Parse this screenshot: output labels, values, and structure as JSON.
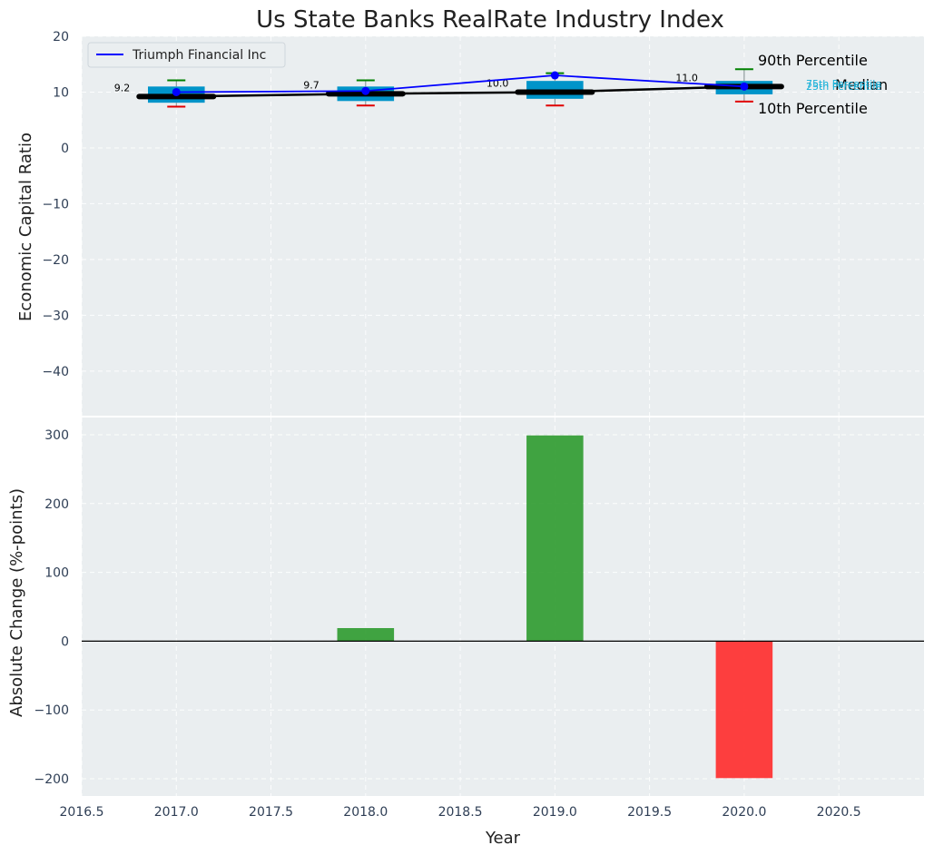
{
  "colors": {
    "panel_bg": "#eaeef0",
    "triumph_line": "#0000ff",
    "median_line": "#000000",
    "box_fill": "#0094c9",
    "p90_whisker": "#008000",
    "p10_whisker": "#e00000",
    "bar_positive": "#2e9a2e",
    "bar_negative": "#ff2a2a",
    "quartile_text": "#17b0d8"
  },
  "chart_data": [
    {
      "type": "box-line",
      "title": "Us State Banks RealRate Industry Index",
      "ylabel": "Economic Capital Ratio",
      "xlim": [
        2016.5,
        2020.95
      ],
      "ylim": [
        -48,
        20
      ],
      "yticks": [
        20,
        10,
        0,
        -10,
        -20,
        -30,
        -40
      ],
      "ytick_labels": [
        "20",
        "10",
        "0",
        "−10",
        "−20",
        "−30",
        "−40"
      ],
      "grid": true,
      "legend_location": "top-left",
      "x": [
        2017,
        2018,
        2019,
        2020
      ],
      "series": [
        {
          "name": "Triumph Financial Inc",
          "values": [
            10.0,
            10.2,
            13.0,
            11.0
          ]
        }
      ],
      "median": [
        9.2,
        9.7,
        10.0,
        11.0
      ],
      "median_labels": [
        "9.2",
        "9.7",
        "10.0",
        "11.0"
      ],
      "p10": [
        7.4,
        7.6,
        7.6,
        8.3
      ],
      "p25": [
        8.1,
        8.4,
        8.8,
        9.6
      ],
      "p75": [
        11.0,
        11.0,
        12.0,
        12.0
      ],
      "p90": [
        12.1,
        12.1,
        13.4,
        14.1
      ],
      "annotations": {
        "p90": "90th Percentile",
        "median": "Median",
        "p10": "10th Percentile",
        "p75": "75th Percentile",
        "p25": "25th Percentile"
      }
    },
    {
      "type": "bar",
      "ylabel": "Absolute Change (%-points)",
      "xlabel": "Year",
      "xlim": [
        2016.5,
        2020.95
      ],
      "ylim": [
        -225,
        325
      ],
      "yticks": [
        300,
        200,
        100,
        0,
        -100,
        -200
      ],
      "ytick_labels": [
        "300",
        "200",
        "100",
        "0",
        "−100",
        "−200"
      ],
      "xticks": [
        2016.5,
        2017.0,
        2017.5,
        2018.0,
        2018.5,
        2019.0,
        2019.5,
        2020.0,
        2020.5
      ],
      "xtick_labels": [
        "2016.5",
        "2017.0",
        "2017.5",
        "2018.0",
        "2018.5",
        "2019.0",
        "2019.5",
        "2020.0",
        "2020.5"
      ],
      "grid": true,
      "x": [
        2017,
        2018,
        2019,
        2020
      ],
      "values": [
        0,
        19,
        299,
        -199
      ]
    }
  ]
}
